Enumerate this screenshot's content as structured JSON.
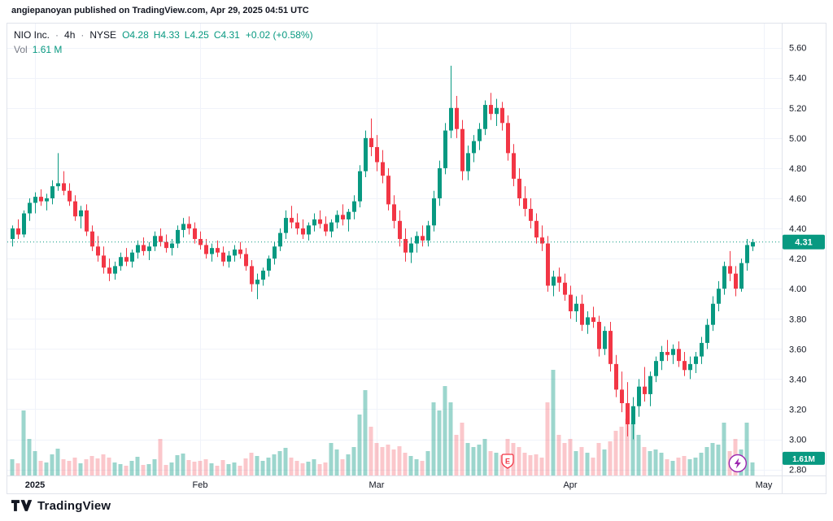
{
  "attribution": "angiepanoyan published on TradingView.com, Apr 29, 2025 04:51 UTC",
  "legend": {
    "symbol_title": "NIO Inc.",
    "sep": "·",
    "interval": "4h",
    "exchange": "NYSE",
    "ohlc": {
      "open": "O4.28",
      "high": "H4.33",
      "low": "L4.25",
      "close": "C4.31"
    },
    "change": "+0.02 (+0.58%)",
    "vol_label": "Vol",
    "vol_value": "1.61 M"
  },
  "footer": {
    "brand": "TradingView"
  },
  "colors": {
    "up": "#089981",
    "down": "#f23645",
    "vol_up": "rgba(8,153,129,0.40)",
    "vol_down": "rgba(242,54,69,0.28)",
    "grid": "#f0f3fa",
    "axis_border": "#e0e3eb",
    "axis_text": "#131722",
    "muted_text": "#787b86",
    "earnings": "#f23645",
    "flash": "#9c27b0",
    "badge_text": "#ffffff"
  },
  "chart_data": {
    "type": "candlestick+volume",
    "symbol": "NIO",
    "interval": "4h",
    "exchange": "NYSE",
    "last_price": 4.31,
    "last_price_label": "4.31",
    "last_volume_label": "1.61M",
    "earnings_label": "E",
    "earnings_index": 87,
    "flash_index": 127.4,
    "price_axis": {
      "min": 2.76,
      "max": 5.76,
      "ticks": [
        "5.60",
        "5.40",
        "5.20",
        "5.00",
        "4.80",
        "4.60",
        "4.40",
        "4.20",
        "4.00",
        "3.80",
        "3.60",
        "3.40",
        "3.20",
        "3.00",
        "2.80"
      ]
    },
    "time_ticks": [
      {
        "label": "2025",
        "index": 4,
        "bold": true
      },
      {
        "label": "Feb",
        "index": 33,
        "bold": false
      },
      {
        "label": "Mar",
        "index": 64,
        "bold": false
      },
      {
        "label": "Apr",
        "index": 98,
        "bold": false
      },
      {
        "label": "May",
        "index": 132,
        "bold": false
      }
    ],
    "volume_unit": "M",
    "candles": [
      [
        4.33,
        4.42,
        4.28,
        4.4,
        2.0
      ],
      [
        4.4,
        4.46,
        4.33,
        4.36,
        1.5
      ],
      [
        4.36,
        4.52,
        4.34,
        4.5,
        8.0
      ],
      [
        4.5,
        4.6,
        4.45,
        4.57,
        4.5
      ],
      [
        4.57,
        4.64,
        4.5,
        4.61,
        3.0
      ],
      [
        4.61,
        4.66,
        4.55,
        4.58,
        1.8
      ],
      [
        4.58,
        4.63,
        4.52,
        4.6,
        1.6
      ],
      [
        4.6,
        4.72,
        4.56,
        4.68,
        2.6
      ],
      [
        4.68,
        4.9,
        4.65,
        4.7,
        3.3
      ],
      [
        4.7,
        4.78,
        4.62,
        4.65,
        2.0
      ],
      [
        4.65,
        4.7,
        4.55,
        4.58,
        1.8
      ],
      [
        4.58,
        4.62,
        4.45,
        4.48,
        2.2
      ],
      [
        4.48,
        4.55,
        4.4,
        4.52,
        1.5
      ],
      [
        4.52,
        4.56,
        4.35,
        4.38,
        2.0
      ],
      [
        4.38,
        4.42,
        4.25,
        4.28,
        2.4
      ],
      [
        4.28,
        4.35,
        4.18,
        4.22,
        2.1
      ],
      [
        4.22,
        4.28,
        4.1,
        4.14,
        2.6
      ],
      [
        4.14,
        4.2,
        4.05,
        4.1,
        2.2
      ],
      [
        4.1,
        4.18,
        4.06,
        4.15,
        1.6
      ],
      [
        4.15,
        4.24,
        4.12,
        4.21,
        1.4
      ],
      [
        4.21,
        4.27,
        4.15,
        4.18,
        1.2
      ],
      [
        4.18,
        4.26,
        4.14,
        4.24,
        1.8
      ],
      [
        4.24,
        4.32,
        4.2,
        4.29,
        2.3
      ],
      [
        4.29,
        4.34,
        4.22,
        4.25,
        1.3
      ],
      [
        4.25,
        4.31,
        4.19,
        4.28,
        1.4
      ],
      [
        4.28,
        4.38,
        4.25,
        4.35,
        2.0
      ],
      [
        4.35,
        4.4,
        4.28,
        4.31,
        4.5
      ],
      [
        4.31,
        4.36,
        4.24,
        4.27,
        1.3
      ],
      [
        4.27,
        4.33,
        4.22,
        4.3,
        1.6
      ],
      [
        4.3,
        4.42,
        4.27,
        4.39,
        2.5
      ],
      [
        4.39,
        4.47,
        4.34,
        4.43,
        2.7
      ],
      [
        4.43,
        4.48,
        4.36,
        4.4,
        1.9
      ],
      [
        4.4,
        4.44,
        4.3,
        4.33,
        1.7
      ],
      [
        4.33,
        4.38,
        4.26,
        4.29,
        1.8
      ],
      [
        4.29,
        4.33,
        4.2,
        4.23,
        2.0
      ],
      [
        4.23,
        4.3,
        4.18,
        4.27,
        1.5
      ],
      [
        4.27,
        4.32,
        4.21,
        4.24,
        1.2
      ],
      [
        4.24,
        4.28,
        4.15,
        4.18,
        1.9
      ],
      [
        4.18,
        4.25,
        4.14,
        4.22,
        1.4
      ],
      [
        4.22,
        4.29,
        4.18,
        4.26,
        1.6
      ],
      [
        4.26,
        4.31,
        4.2,
        4.23,
        1.2
      ],
      [
        4.23,
        4.27,
        4.12,
        4.15,
        2.1
      ],
      [
        4.15,
        4.19,
        3.98,
        4.03,
        2.8
      ],
      [
        4.03,
        4.1,
        3.93,
        4.06,
        2.4
      ],
      [
        4.06,
        4.14,
        4.02,
        4.12,
        1.8
      ],
      [
        4.12,
        4.22,
        4.08,
        4.2,
        2.2
      ],
      [
        4.2,
        4.31,
        4.16,
        4.28,
        2.6
      ],
      [
        4.28,
        4.4,
        4.25,
        4.37,
        3.0
      ],
      [
        4.37,
        4.52,
        4.33,
        4.47,
        3.4
      ],
      [
        4.47,
        4.55,
        4.4,
        4.44,
        2.2
      ],
      [
        4.44,
        4.5,
        4.36,
        4.4,
        1.8
      ],
      [
        4.4,
        4.46,
        4.33,
        4.36,
        1.5
      ],
      [
        4.36,
        4.44,
        4.32,
        4.42,
        1.7
      ],
      [
        4.42,
        4.5,
        4.38,
        4.46,
        2.0
      ],
      [
        4.46,
        4.52,
        4.4,
        4.43,
        1.4
      ],
      [
        4.43,
        4.48,
        4.35,
        4.38,
        1.6
      ],
      [
        4.38,
        4.46,
        4.34,
        4.44,
        4.0
      ],
      [
        4.44,
        4.52,
        4.4,
        4.49,
        3.2
      ],
      [
        4.49,
        4.56,
        4.42,
        4.46,
        2.0
      ],
      [
        4.46,
        4.53,
        4.38,
        4.51,
        2.6
      ],
      [
        4.51,
        4.62,
        4.46,
        4.58,
        3.5
      ],
      [
        4.58,
        4.82,
        4.54,
        4.78,
        7.5
      ],
      [
        4.78,
        5.05,
        4.74,
        5.0,
        10.5
      ],
      [
        5.0,
        5.13,
        4.88,
        4.94,
        6.0
      ],
      [
        4.94,
        5.02,
        4.78,
        4.84,
        4.0
      ],
      [
        4.84,
        4.92,
        4.7,
        4.75,
        3.5
      ],
      [
        4.75,
        4.8,
        4.52,
        4.56,
        3.8
      ],
      [
        4.56,
        4.62,
        4.4,
        4.45,
        3.2
      ],
      [
        4.45,
        4.52,
        4.28,
        4.33,
        3.6
      ],
      [
        4.33,
        4.4,
        4.18,
        4.24,
        2.8
      ],
      [
        4.24,
        4.34,
        4.17,
        4.3,
        2.4
      ],
      [
        4.3,
        4.38,
        4.24,
        4.35,
        2.0
      ],
      [
        4.35,
        4.42,
        4.28,
        4.32,
        1.8
      ],
      [
        4.32,
        4.45,
        4.28,
        4.42,
        3.0
      ],
      [
        4.42,
        4.65,
        4.38,
        4.6,
        9.0
      ],
      [
        4.6,
        4.85,
        4.55,
        4.8,
        8.0
      ],
      [
        4.8,
        5.1,
        4.76,
        5.05,
        11.0
      ],
      [
        5.05,
        5.48,
        5.0,
        5.2,
        9.0
      ],
      [
        5.2,
        5.28,
        5.0,
        5.06,
        5.0
      ],
      [
        5.06,
        5.12,
        4.72,
        4.78,
        6.5
      ],
      [
        4.78,
        4.95,
        4.72,
        4.9,
        4.0
      ],
      [
        4.9,
        5.02,
        4.84,
        4.98,
        3.5
      ],
      [
        4.98,
        5.1,
        4.92,
        5.06,
        3.8
      ],
      [
        5.06,
        5.25,
        5.02,
        5.22,
        4.5
      ],
      [
        5.22,
        5.3,
        5.12,
        5.16,
        3.0
      ],
      [
        5.16,
        5.26,
        5.08,
        5.2,
        2.8
      ],
      [
        5.2,
        5.24,
        5.05,
        5.1,
        2.5
      ],
      [
        5.1,
        5.15,
        4.85,
        4.9,
        4.5
      ],
      [
        4.9,
        4.96,
        4.68,
        4.73,
        4.0
      ],
      [
        4.73,
        4.8,
        4.55,
        4.6,
        3.5
      ],
      [
        4.6,
        4.68,
        4.48,
        4.53,
        2.8
      ],
      [
        4.53,
        4.6,
        4.4,
        4.45,
        2.5
      ],
      [
        4.45,
        4.5,
        4.3,
        4.34,
        2.6
      ],
      [
        4.34,
        4.42,
        4.25,
        4.3,
        2.2
      ],
      [
        4.3,
        4.35,
        3.98,
        4.02,
        9.0
      ],
      [
        4.02,
        4.12,
        3.95,
        4.08,
        13.0
      ],
      [
        4.08,
        4.14,
        3.98,
        4.04,
        5.0
      ],
      [
        4.04,
        4.1,
        3.92,
        3.96,
        4.0
      ],
      [
        3.96,
        4.02,
        3.8,
        3.85,
        4.5
      ],
      [
        3.85,
        3.95,
        3.78,
        3.9,
        3.0
      ],
      [
        3.9,
        3.96,
        3.72,
        3.76,
        3.5
      ],
      [
        3.76,
        3.85,
        3.7,
        3.81,
        2.8
      ],
      [
        3.81,
        3.88,
        3.74,
        3.78,
        2.2
      ],
      [
        3.78,
        3.82,
        3.55,
        3.6,
        4.0
      ],
      [
        3.6,
        3.75,
        3.56,
        3.72,
        3.2
      ],
      [
        3.72,
        3.78,
        3.45,
        3.5,
        4.2
      ],
      [
        3.5,
        3.56,
        3.28,
        3.33,
        5.5
      ],
      [
        3.33,
        3.45,
        3.18,
        3.24,
        6.0
      ],
      [
        3.24,
        3.38,
        3.02,
        3.1,
        7.0
      ],
      [
        3.1,
        3.28,
        3.0,
        3.22,
        6.5
      ],
      [
        3.22,
        3.4,
        3.15,
        3.35,
        5.0
      ],
      [
        3.35,
        3.48,
        3.25,
        3.3,
        3.5
      ],
      [
        3.3,
        3.45,
        3.22,
        3.42,
        3.0
      ],
      [
        3.42,
        3.55,
        3.38,
        3.52,
        3.2
      ],
      [
        3.52,
        3.62,
        3.46,
        3.58,
        2.8
      ],
      [
        3.58,
        3.66,
        3.52,
        3.56,
        2.0
      ],
      [
        3.56,
        3.63,
        3.5,
        3.6,
        1.8
      ],
      [
        3.6,
        3.65,
        3.48,
        3.52,
        2.2
      ],
      [
        3.52,
        3.58,
        3.42,
        3.46,
        2.4
      ],
      [
        3.46,
        3.55,
        3.4,
        3.5,
        2.0
      ],
      [
        3.5,
        3.58,
        3.44,
        3.55,
        2.2
      ],
      [
        3.55,
        3.68,
        3.5,
        3.64,
        2.8
      ],
      [
        3.64,
        3.8,
        3.6,
        3.76,
        3.5
      ],
      [
        3.76,
        3.95,
        3.72,
        3.9,
        4.0
      ],
      [
        3.9,
        4.05,
        3.85,
        4.0,
        3.8
      ],
      [
        4.0,
        4.18,
        3.96,
        4.15,
        6.5
      ],
      [
        4.15,
        4.25,
        4.05,
        4.1,
        3.0
      ],
      [
        4.1,
        4.15,
        3.95,
        4.0,
        4.5
      ],
      [
        4.0,
        4.2,
        3.98,
        4.17,
        3.2
      ],
      [
        4.17,
        4.33,
        4.12,
        4.29,
        6.5
      ],
      [
        4.28,
        4.33,
        4.25,
        4.31,
        1.61
      ]
    ]
  }
}
